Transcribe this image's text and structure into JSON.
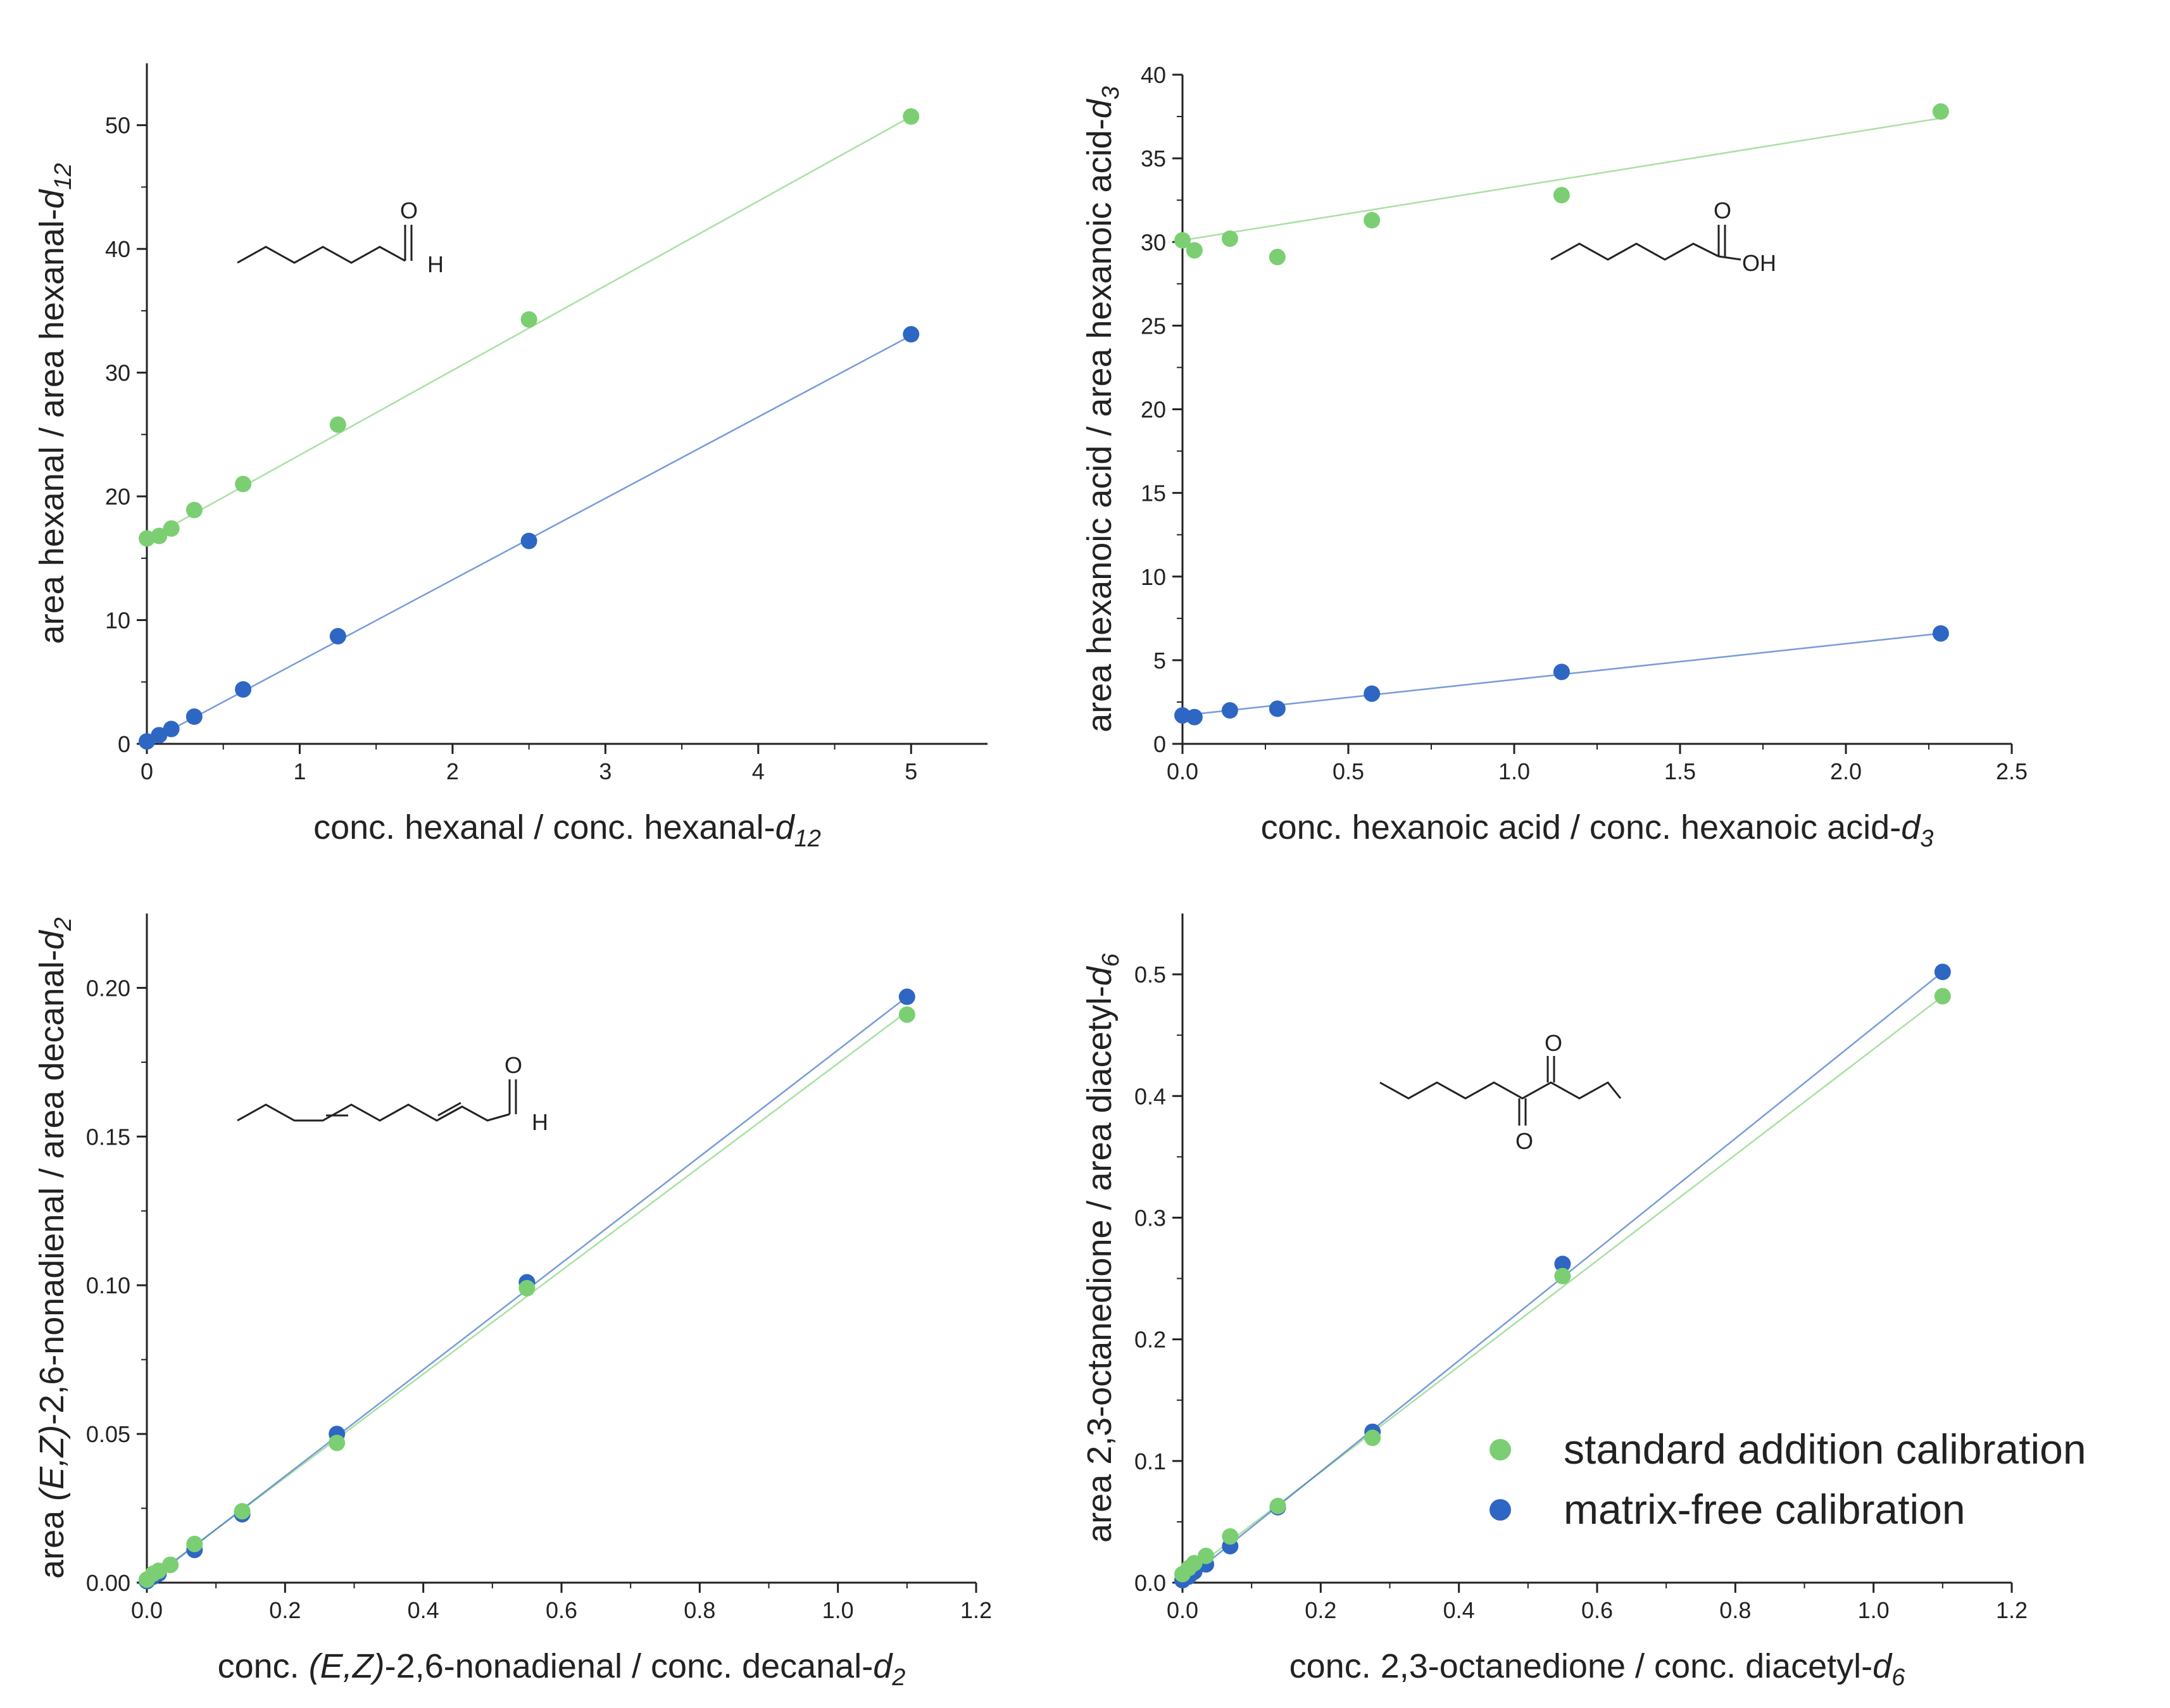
{
  "colors": {
    "standard_addition": "#7bcf72",
    "matrix_free": "#2e66c4",
    "axis": "#222222"
  },
  "legend": {
    "items": [
      {
        "label": "standard addition calibration",
        "color": "#7bcf72"
      },
      {
        "label": "matrix-free calibration",
        "color": "#2e66c4"
      }
    ]
  },
  "chart_data": [
    {
      "type": "scatter",
      "compound": "hexanal",
      "xlabel": {
        "main": "conc. hexanal / conc. hexanal-",
        "sub": "d",
        "subscript": "12"
      },
      "ylabel": {
        "main": "area hexanal / area hexanal-",
        "sub": "d",
        "subscript": "12"
      },
      "xlim": [
        0,
        5.5
      ],
      "ylim": [
        0,
        55
      ],
      "xticks": [
        0,
        1,
        2,
        3,
        4,
        5
      ],
      "xtick_labels": [
        "0",
        "1",
        "2",
        "3",
        "4",
        "5"
      ],
      "yticks": [
        0,
        10,
        20,
        30,
        40,
        50
      ],
      "ytick_labels": [
        "0",
        "10",
        "20",
        "30",
        "40",
        "50"
      ],
      "structure_labels": [
        "O",
        "H"
      ],
      "series": [
        {
          "name": "standard addition calibration",
          "x": [
            0,
            0.08,
            0.16,
            0.31,
            0.63,
            1.25,
            2.5,
            5.0
          ],
          "y": [
            16.6,
            16.8,
            17.4,
            18.9,
            21.0,
            25.8,
            34.3,
            50.7
          ],
          "fit": [
            [
              0,
              16.5
            ],
            [
              5.0,
              50.7
            ]
          ]
        },
        {
          "name": "matrix-free calibration",
          "x": [
            0,
            0.08,
            0.16,
            0.31,
            0.63,
            1.25,
            2.5,
            5.0
          ],
          "y": [
            0.2,
            0.7,
            1.2,
            2.2,
            4.4,
            8.7,
            16.4,
            33.1
          ],
          "fit": [
            [
              0,
              0.1
            ],
            [
              5.0,
              33.0
            ]
          ]
        }
      ]
    },
    {
      "type": "scatter",
      "compound": "hexanoic acid",
      "xlabel": {
        "main": "conc. hexanoic acid / conc. hexanoic acid-",
        "sub": "d",
        "subscript": "3"
      },
      "ylabel": {
        "main": "area hexanoic acid / area hexanoic acid-",
        "sub": "d",
        "subscript": "3"
      },
      "xlim": [
        0,
        2.5
      ],
      "ylim": [
        0,
        40
      ],
      "xticks": [
        0,
        0.5,
        1.0,
        1.5,
        2.0,
        2.5
      ],
      "xtick_labels": [
        "0.0",
        "0.5",
        "1.0",
        "1.5",
        "2.0",
        "2.5"
      ],
      "yticks": [
        0,
        5,
        10,
        15,
        20,
        25,
        30,
        35,
        40
      ],
      "ytick_labels": [
        "0",
        "5",
        "10",
        "15",
        "20",
        "25",
        "30",
        "35",
        "40"
      ],
      "structure_labels": [
        "O",
        "OH"
      ],
      "series": [
        {
          "name": "standard addition calibration",
          "x": [
            0.0,
            0.036,
            0.143,
            0.286,
            0.571,
            1.143,
            2.286
          ],
          "y": [
            30.1,
            29.5,
            30.2,
            29.1,
            31.3,
            32.8,
            37.8
          ],
          "fit": [
            [
              0,
              30.1
            ],
            [
              2.286,
              37.4
            ]
          ]
        },
        {
          "name": "matrix-free calibration",
          "x": [
            0.0,
            0.036,
            0.143,
            0.286,
            0.571,
            1.143,
            2.286
          ],
          "y": [
            1.7,
            1.6,
            2.0,
            2.1,
            3.0,
            4.3,
            6.6
          ],
          "fit": [
            [
              0,
              1.7
            ],
            [
              2.286,
              6.6
            ]
          ]
        }
      ]
    },
    {
      "type": "scatter",
      "compound": "(E,Z)-2,6-nonadienal",
      "xlabel": {
        "pre": "conc. ",
        "italic": "(E,Z)",
        "main": "-2,6-nonadienal / conc. decanal-",
        "sub": "d",
        "subscript": "2"
      },
      "ylabel": {
        "pre": "area ",
        "italic": "(E,Z)",
        "main": "-2,6-nonadienal / area decanal-",
        "sub": "d",
        "subscript": "2"
      },
      "xlim": [
        0,
        1.2
      ],
      "ylim": [
        0,
        0.225
      ],
      "xticks": [
        0,
        0.2,
        0.4,
        0.6,
        0.8,
        1.0,
        1.2
      ],
      "xtick_labels": [
        "0.0",
        "0.2",
        "0.4",
        "0.6",
        "0.8",
        "1.0",
        "1.2"
      ],
      "yticks": [
        0,
        0.05,
        0.1,
        0.15,
        0.2
      ],
      "ytick_labels": [
        "0.00",
        "0.05",
        "0.10",
        "0.15",
        "0.20"
      ],
      "structure_labels": [
        "O",
        "H"
      ],
      "series": [
        {
          "name": "standard addition calibration",
          "x": [
            0.0,
            0.009,
            0.017,
            0.034,
            0.069,
            0.138,
            0.275,
            0.55,
            1.1
          ],
          "y": [
            0.001,
            0.003,
            0.004,
            0.006,
            0.013,
            0.024,
            0.047,
            0.099,
            0.191
          ],
          "fit": [
            [
              0,
              0.0005
            ],
            [
              1.1,
              0.192
            ]
          ]
        },
        {
          "name": "matrix-free calibration",
          "x": [
            0.0,
            0.009,
            0.017,
            0.034,
            0.069,
            0.138,
            0.275,
            0.55,
            1.1
          ],
          "y": [
            0.0005,
            0.002,
            0.003,
            0.006,
            0.011,
            0.023,
            0.05,
            0.101,
            0.197
          ],
          "fit": [
            [
              0,
              0.0
            ],
            [
              1.1,
              0.197
            ]
          ]
        }
      ]
    },
    {
      "type": "scatter",
      "compound": "2,3-octanedione",
      "xlabel": {
        "main": "conc. 2,3-octanedione / conc. diacetyl-",
        "sub": "d",
        "subscript": "6"
      },
      "ylabel": {
        "main": "area 2,3-octanedione / area diacetyl-",
        "sub": "d",
        "subscript": "6"
      },
      "xlim": [
        0,
        1.2
      ],
      "ylim": [
        0,
        0.55
      ],
      "xticks": [
        0,
        0.2,
        0.4,
        0.6,
        0.8,
        1.0,
        1.2
      ],
      "xtick_labels": [
        "0.0",
        "0.2",
        "0.4",
        "0.6",
        "0.8",
        "1.0",
        "1.2"
      ],
      "yticks": [
        0,
        0.1,
        0.2,
        0.3,
        0.4,
        0.5
      ],
      "ytick_labels": [
        "0.0",
        "0.1",
        "0.2",
        "0.3",
        "0.4",
        "0.5"
      ],
      "structure_labels": [
        "O",
        "O"
      ],
      "series": [
        {
          "name": "standard addition calibration",
          "x": [
            0.0,
            0.009,
            0.017,
            0.034,
            0.069,
            0.138,
            0.275,
            0.55,
            1.1
          ],
          "y": [
            0.007,
            0.012,
            0.016,
            0.022,
            0.038,
            0.063,
            0.119,
            0.252,
            0.482
          ],
          "fit": [
            [
              0,
              0.004
            ],
            [
              1.1,
              0.482
            ]
          ]
        },
        {
          "name": "matrix-free calibration",
          "x": [
            0.0,
            0.009,
            0.017,
            0.034,
            0.069,
            0.138,
            0.275,
            0.55,
            1.1
          ],
          "y": [
            0.002,
            0.005,
            0.009,
            0.015,
            0.03,
            0.062,
            0.124,
            0.262,
            0.502
          ],
          "fit": [
            [
              0,
              0.0
            ],
            [
              1.1,
              0.502
            ]
          ]
        }
      ]
    }
  ]
}
